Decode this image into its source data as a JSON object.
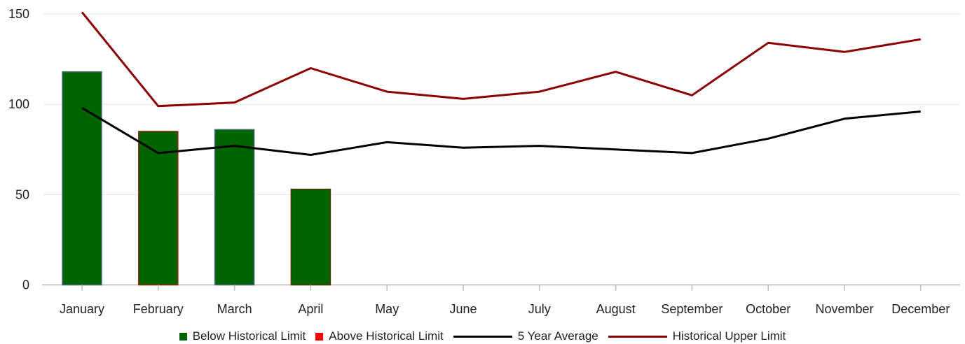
{
  "chart_data": {
    "type": "bar",
    "categories": [
      "January",
      "February",
      "March",
      "April",
      "May",
      "June",
      "July",
      "August",
      "September",
      "October",
      "November",
      "December"
    ],
    "series": [
      {
        "name": "Below Historical Limit",
        "kind": "bar",
        "color": "#006400",
        "values": [
          118,
          85,
          86,
          53,
          null,
          null,
          null,
          null,
          null,
          null,
          null,
          null
        ],
        "border_colors": [
          "#4a6a7a",
          "#8b2500",
          "#4a6a7a",
          "#5a3000",
          null,
          null,
          null,
          null,
          null,
          null,
          null,
          null
        ]
      },
      {
        "name": "Above Historical Limit",
        "kind": "bar",
        "color": "#ff0000",
        "values": [
          null,
          null,
          null,
          null,
          null,
          null,
          null,
          null,
          null,
          null,
          null,
          null
        ]
      },
      {
        "name": "5 Year Average",
        "kind": "line",
        "color": "#000000",
        "values": [
          98,
          73,
          77,
          72,
          79,
          76,
          77,
          75,
          73,
          81,
          92,
          96
        ]
      },
      {
        "name": "Historical Upper Limit",
        "kind": "line",
        "color": "#8b0000",
        "values": [
          151,
          99,
          101,
          120,
          107,
          103,
          107,
          118,
          105,
          134,
          129,
          136
        ]
      }
    ],
    "y_ticks": [
      0,
      50,
      100,
      150
    ],
    "ylim": [
      0,
      150
    ],
    "xlabel": "",
    "ylabel": "",
    "title": "",
    "grid": true,
    "legend_position": "bottom"
  }
}
